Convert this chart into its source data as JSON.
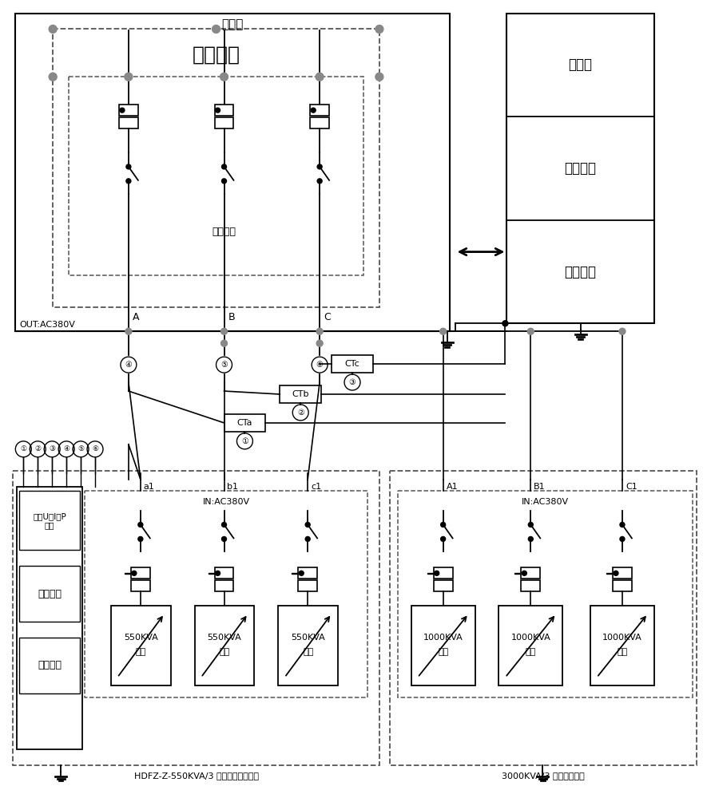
{
  "figsize": [
    8.85,
    10.0
  ],
  "dpi": 100,
  "bg_color": "#ffffff",
  "top_label": "发电车",
  "generator_label": "发电机组",
  "output_control_label": "输出控制",
  "right_box_labels": [
    "发电车",
    "显示部分",
    "控制部分"
  ],
  "phase_labels_top": [
    "A",
    "B",
    "C"
  ],
  "out_label": "OUT:AC380V",
  "in_label1": "IN:AC380V",
  "in_label2": "IN:AC380V",
  "ct_labels": [
    "CTa",
    "CTb",
    "CTc"
  ],
  "signal_label": "外接U、I、P\n信号",
  "display_label1": "显示部分",
  "control_label1": "控制部分",
  "phase_labels_bottom_left": [
    "a1",
    "b1",
    "c1"
  ],
  "phase_labels_bottom_right": [
    "A1",
    "B1",
    "C1"
  ],
  "load_labels_left": [
    "550KVA\n负载",
    "550KVA\n负载",
    "550KVA\n负载"
  ],
  "load_labels_right": [
    "1000KVA\n负载",
    "1000KVA\n负载",
    "1000KVA\n负载"
  ],
  "bottom_label_left": "HDFZ-Z-550KVA/3 三相智能负载装置",
  "bottom_label_right": "3000KVA/3 三相负载装置"
}
